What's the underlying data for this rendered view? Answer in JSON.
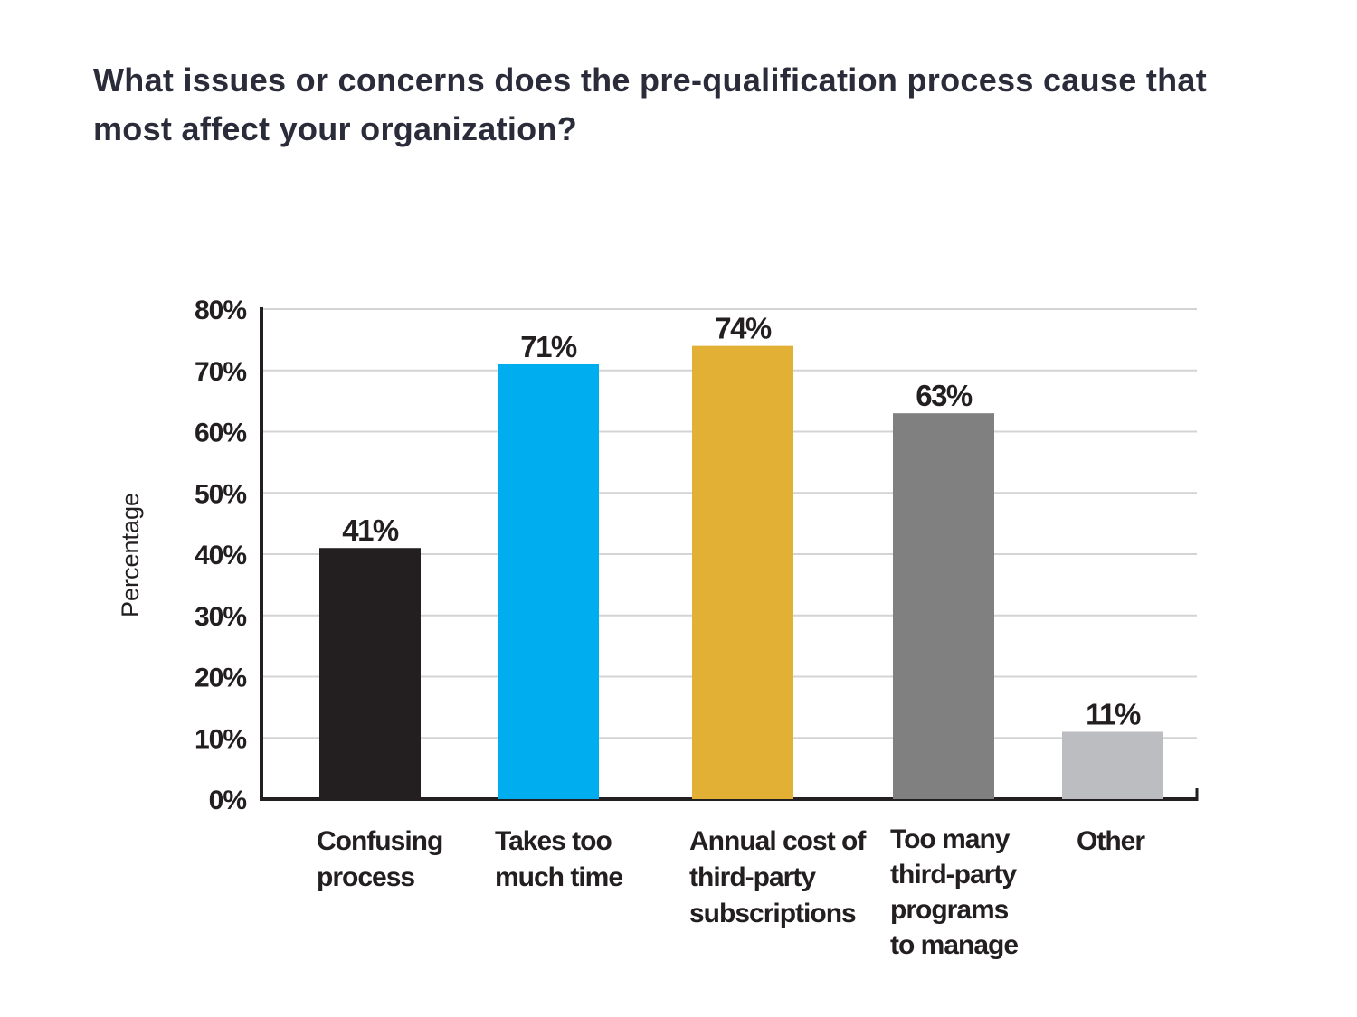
{
  "chart_data": {
    "type": "bar",
    "title": "What issues or concerns does the pre-qualification process cause that most affect your organization?",
    "xlabel": "",
    "ylabel": "Percentage",
    "ylim": [
      0,
      80
    ],
    "yticks": [
      "0%",
      "10%",
      "20%",
      "30%",
      "40%",
      "50%",
      "60%",
      "70%",
      "80%"
    ],
    "grid": true,
    "categories": [
      [
        "Confusing",
        "process"
      ],
      [
        "Takes too",
        "much time"
      ],
      [
        "Annual cost of",
        "third-party",
        "subscriptions"
      ],
      [
        "Too many",
        "third-party",
        "programs",
        "to manage"
      ],
      [
        "Other"
      ]
    ],
    "values": [
      41,
      71,
      74,
      63,
      11
    ],
    "data_labels": [
      "41%",
      "71%",
      "74%",
      "63%",
      "11%"
    ],
    "colors": [
      "#231f20",
      "#00aeef",
      "#e2b035",
      "#808080",
      "#bcbdc0"
    ]
  }
}
